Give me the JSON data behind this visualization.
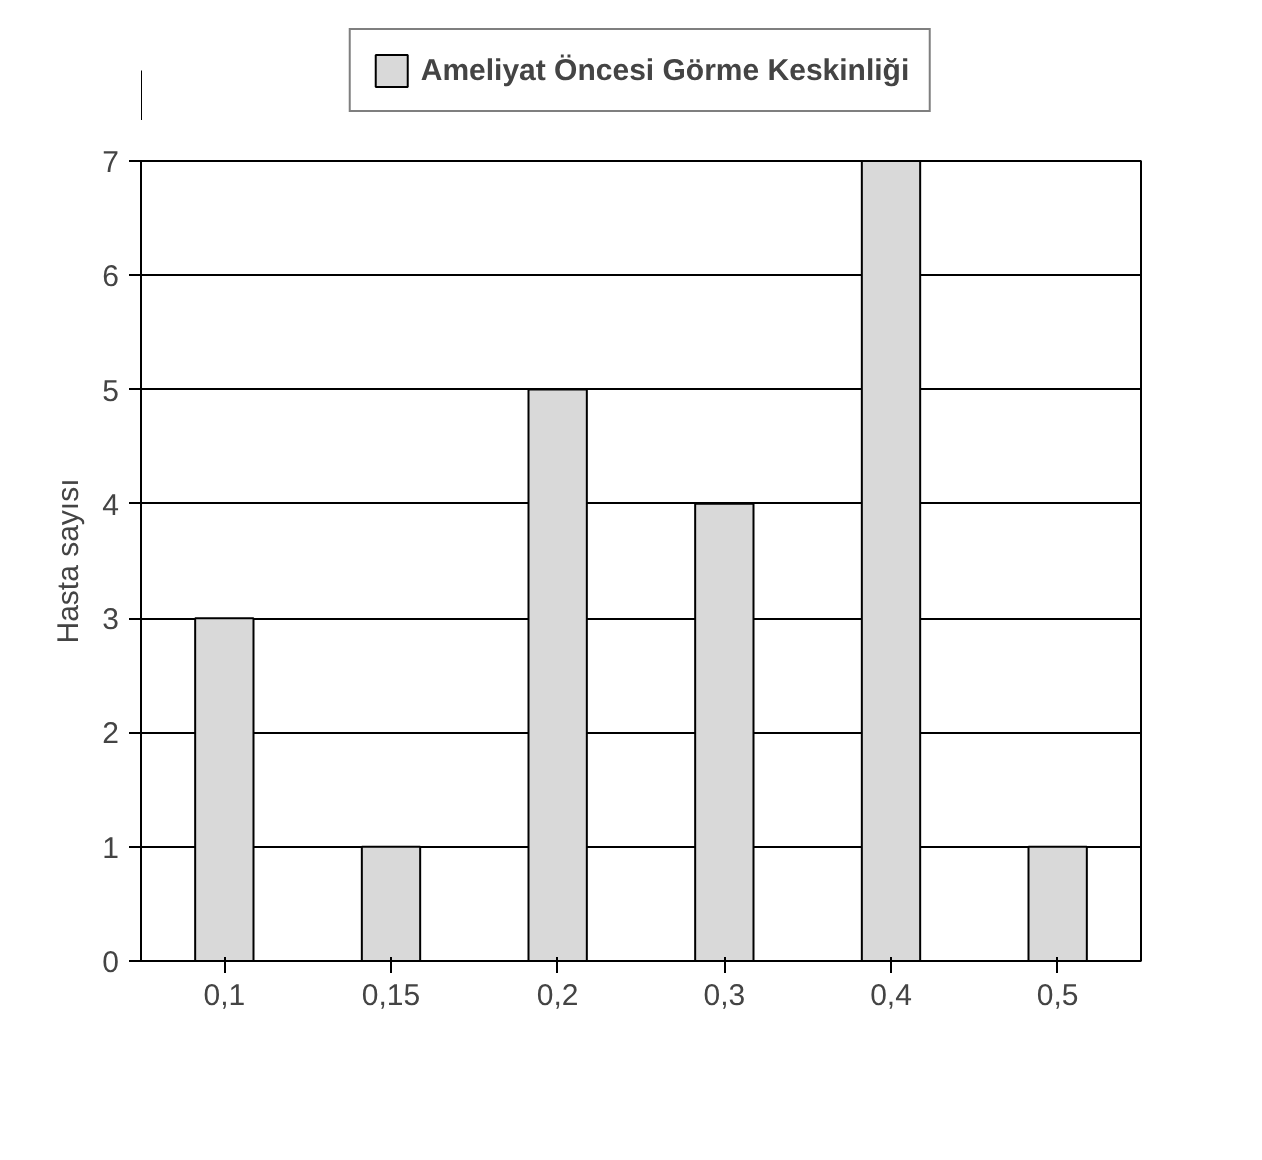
{
  "chart_data": {
    "type": "bar",
    "ylabel": "Hasta sayısı",
    "categories": [
      "0,1",
      "0,15",
      "0,2",
      "0,3",
      "0,4",
      "0,5"
    ],
    "series": [
      {
        "name": "Ameliyat Öncesi Görme Keskinliği",
        "color": "#d9d9d9",
        "values": [
          3,
          1,
          5,
          4,
          7,
          1
        ]
      }
    ],
    "ylim": [
      0,
      7
    ],
    "yticks": [
      0,
      1,
      2,
      3,
      4,
      5,
      6,
      7
    ],
    "grid": "y",
    "legend": "top"
  }
}
